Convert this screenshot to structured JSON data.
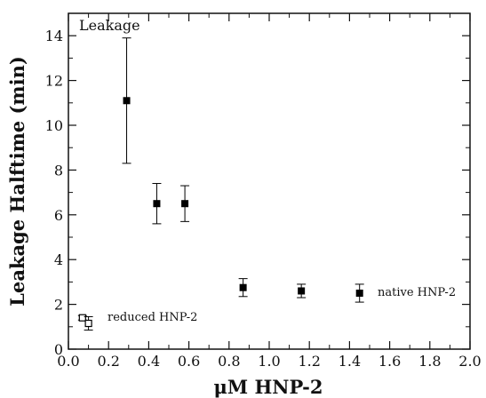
{
  "chart_data": {
    "type": "scatter",
    "panel_label": "Leakage",
    "xlabel": "μM  HNP-2",
    "ylabel": "Leakage Halftime (min)",
    "xlim": [
      0.0,
      2.0
    ],
    "ylim": [
      0,
      15
    ],
    "x_ticks": [
      "0.0",
      "0.2",
      "0.4",
      "0.6",
      "0.8",
      "1.0",
      "1.2",
      "1.4",
      "1.6",
      "1.8",
      "2.0"
    ],
    "y_ticks": [
      "0",
      "2",
      "4",
      "6",
      "8",
      "10",
      "12",
      "14"
    ],
    "grid": false,
    "series": [
      {
        "name": "native HNP-2",
        "marker": "filled-square",
        "color": "#000000",
        "points": [
          {
            "x": 0.29,
            "y": 11.1,
            "err_low": 8.3,
            "err_high": 13.9
          },
          {
            "x": 0.44,
            "y": 6.5,
            "err_low": 5.6,
            "err_high": 7.4
          },
          {
            "x": 0.58,
            "y": 6.5,
            "err_low": 5.7,
            "err_high": 7.3
          },
          {
            "x": 0.87,
            "y": 2.75,
            "err_low": 2.35,
            "err_high": 3.15
          },
          {
            "x": 1.16,
            "y": 2.6,
            "err_low": 2.3,
            "err_high": 2.9
          },
          {
            "x": 1.45,
            "y": 2.5,
            "err_low": 2.1,
            "err_high": 2.9
          }
        ]
      },
      {
        "name": "reduced HNP-2",
        "marker": "open-square",
        "color": "#000000",
        "points": [
          {
            "x": 0.07,
            "y": 1.4,
            "err_low": 1.3,
            "err_high": 1.5
          },
          {
            "x": 0.1,
            "y": 1.15,
            "err_low": 0.85,
            "err_high": 1.45
          }
        ]
      }
    ]
  }
}
